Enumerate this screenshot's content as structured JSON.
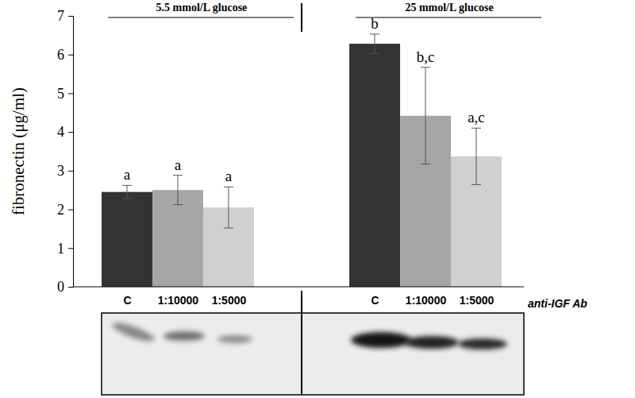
{
  "chart_data": {
    "type": "bar",
    "categories": [
      "C",
      "1:10000",
      "1:5000",
      "C",
      "1:10000",
      "1:5000"
    ],
    "groups": [
      "5.5 mmol/L glucose",
      "25 mmol/L glucose"
    ],
    "values": [
      2.45,
      2.5,
      2.05,
      6.28,
      4.42,
      3.37
    ],
    "errors": [
      0.17,
      0.38,
      0.53,
      0.25,
      1.25,
      0.73
    ],
    "annotations": [
      "a",
      "a",
      "a",
      "b",
      "b,c",
      "a,c"
    ],
    "colors": [
      "#333333",
      "#a6a6a6",
      "#d0d0d0",
      "#333333",
      "#a6a6a6",
      "#d0d0d0"
    ],
    "xlabel": "anti-IGF Ab",
    "ylabel": "fibronectin (μg/ml)",
    "ylim": [
      0,
      7
    ],
    "yticks": [
      0,
      1,
      2,
      3,
      4,
      5,
      6,
      7
    ],
    "grid": false
  }
}
